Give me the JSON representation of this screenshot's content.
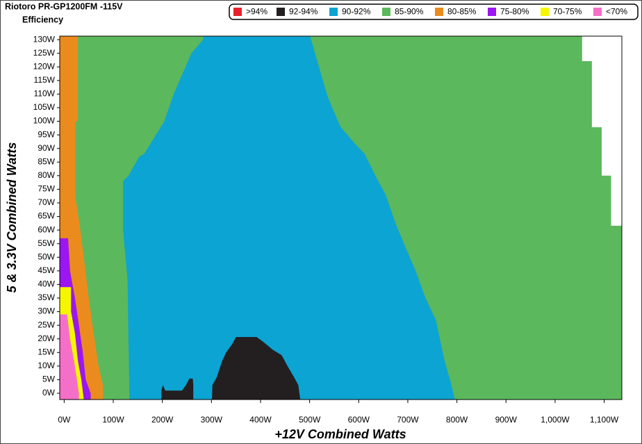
{
  "chart_data": {
    "type": "region",
    "title": "Riotoro PR-GP1200FM -115V",
    "subtitle": "Efficiency",
    "x_label": "+12V Combined Watts",
    "y_label": "5 & 3.3V Combined Watts",
    "xlim": [
      -9,
      1136
    ],
    "ylim": [
      -2.3,
      131.3
    ],
    "xticks": [
      {
        "value": 0,
        "label": "0W"
      },
      {
        "value": 100,
        "label": "100W"
      },
      {
        "value": 200,
        "label": "200W"
      },
      {
        "value": 300,
        "label": "300W"
      },
      {
        "value": 400,
        "label": "400W"
      },
      {
        "value": 500,
        "label": "500W"
      },
      {
        "value": 600,
        "label": "600W"
      },
      {
        "value": 700,
        "label": "700W"
      },
      {
        "value": 800,
        "label": "800W"
      },
      {
        "value": 900,
        "label": "900W"
      },
      {
        "value": 1000,
        "label": "1,000W"
      },
      {
        "value": 1100,
        "label": "1,100W"
      }
    ],
    "yticks": [
      {
        "value": 0,
        "label": "0W"
      },
      {
        "value": 5,
        "label": "5W"
      },
      {
        "value": 10,
        "label": "10W"
      },
      {
        "value": 15,
        "label": "15W"
      },
      {
        "value": 20,
        "label": "20W"
      },
      {
        "value": 25,
        "label": "25W"
      },
      {
        "value": 30,
        "label": "30W"
      },
      {
        "value": 35,
        "label": "35W"
      },
      {
        "value": 40,
        "label": "40W"
      },
      {
        "value": 45,
        "label": "45W"
      },
      {
        "value": 50,
        "label": "50W"
      },
      {
        "value": 55,
        "label": "55W"
      },
      {
        "value": 60,
        "label": "60W"
      },
      {
        "value": 65,
        "label": "65W"
      },
      {
        "value": 70,
        "label": "70W"
      },
      {
        "value": 75,
        "label": "75W"
      },
      {
        "value": 80,
        "label": "80W"
      },
      {
        "value": 85,
        "label": "85W"
      },
      {
        "value": 90,
        "label": "90W"
      },
      {
        "value": 95,
        "label": "95W"
      },
      {
        "value": 100,
        "label": "100W"
      },
      {
        "value": 105,
        "label": "105W"
      },
      {
        "value": 110,
        "label": "110W"
      },
      {
        "value": 115,
        "label": "115W"
      },
      {
        "value": 120,
        "label": "120W"
      },
      {
        "value": 125,
        "label": "125W"
      },
      {
        "value": 130,
        "label": "130W"
      }
    ],
    "legend": "top-right",
    "series": [
      {
        "name": ">94%",
        "color": "#e8212a",
        "polygons": []
      },
      {
        "name": "92-94%",
        "color": "#231f20",
        "polygons": [
          {
            "x": [
              301,
              302,
              311,
              322,
              330,
              342,
              350,
              392,
              405,
              425,
              443,
              455,
              468,
              477,
              481
            ],
            "y": [
              -2.3,
              3,
              6,
              12,
              15,
              18,
              20.7,
              20.7,
              19,
              16,
              14,
              10,
              6,
              3,
              -2.3
            ]
          },
          {
            "x": [
              198,
              198,
              201,
              206,
              240,
              248,
              255,
              262,
              263,
              263
            ],
            "y": [
              -2.3,
              1,
              3,
              1,
              1,
              3,
              5.4,
              5.4,
              3,
              -2.3
            ]
          }
        ]
      },
      {
        "name": "90-92%",
        "color": "#0ca4d2",
        "polygons": [
          {
            "x": [
              133,
              129,
              120,
              120,
              131,
              153,
              163,
              204,
              223,
              240,
              259,
              283,
              284,
              501,
              535,
              546,
              563,
              591,
              612,
              634,
              655,
              676,
              697,
              716,
              736,
              757,
              775,
              789,
              796
            ],
            "y": [
              -2.3,
              42,
              60,
              78,
              80,
              87,
              88,
              100,
              110,
              117,
              125,
              130,
              131.3,
              131.3,
              110,
              105,
              98,
              92,
              88,
              80,
              73,
              62,
              53,
              45,
              35,
              27,
              12,
              3,
              -2.3
            ]
          }
        ]
      },
      {
        "name": "85-90%",
        "color": "#5cb85c",
        "polygons": [
          {
            "x": [
              -9,
              -9,
              1055,
              1055,
              1075,
              1075,
              1095,
              1095,
              1114,
              1114,
              1136,
              1136
            ],
            "y": [
              -2.3,
              131.3,
              131.3,
              122.1,
              122.1,
              97.8,
              97.8,
              80,
              80,
              61.6,
              61.6,
              -2.3
            ]
          }
        ]
      },
      {
        "name": "80-85%",
        "color": "#ec8b1d",
        "polygons": [
          {
            "x": [
              -9,
              -9,
              28,
              28,
              23,
              23,
              33,
              42,
              50,
              60,
              70,
              79,
              79
            ],
            "y": [
              -2.3,
              131.3,
              131.3,
              100,
              100,
              72,
              60,
              47,
              35,
              22,
              10,
              3,
              -2.3
            ]
          }
        ]
      },
      {
        "name": "75-80%",
        "color": "#9b16f0",
        "polygons": [
          {
            "x": [
              -9,
              -9,
              8,
              12,
              22,
              30,
              38,
              44,
              54,
              54
            ],
            "y": [
              -2.3,
              57,
              57,
              45,
              35,
              25,
              15,
              5,
              0,
              -2.3
            ]
          }
        ]
      },
      {
        "name": "70-75%",
        "color": "#f6f600",
        "polygons": [
          {
            "x": [
              -9,
              -9,
              14,
              14,
              22,
              28,
              35,
              40
            ],
            "y": [
              -2.3,
              39,
              39,
              30,
              22,
              12,
              5,
              -2.3
            ]
          }
        ]
      },
      {
        "name": "<70%",
        "color": "#f56fc9",
        "polygons": [
          {
            "x": [
              -9,
              -9,
              6,
              12,
              20,
              26,
              30,
              30
            ],
            "y": [
              -2.3,
              29,
              29,
              20,
              12,
              5,
              0,
              -2.3
            ]
          }
        ]
      }
    ]
  }
}
